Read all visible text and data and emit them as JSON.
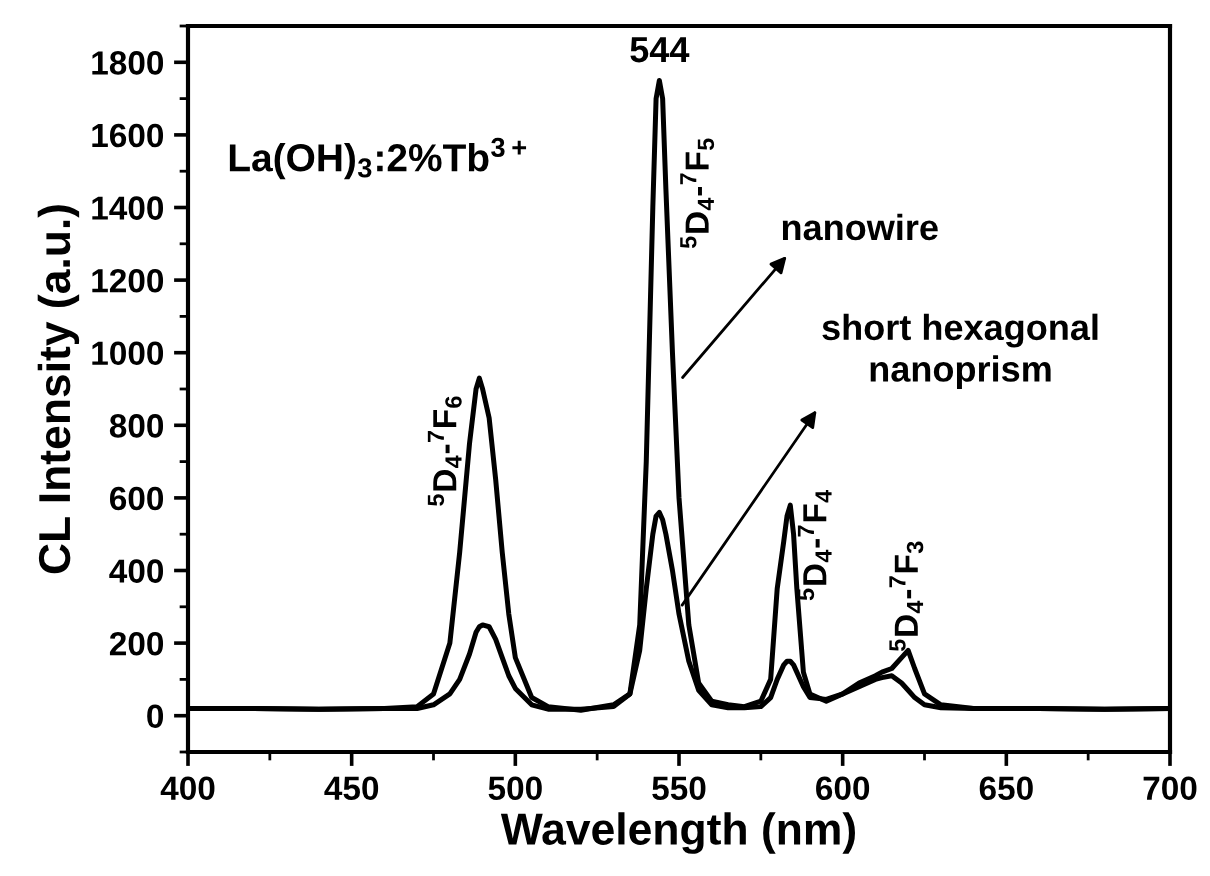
{
  "chart_data": {
    "type": "line",
    "xlabel": "Wavelength (nm)",
    "ylabel": "CL Intensity (a.u.)",
    "x": [
      400,
      420,
      440,
      460,
      470,
      475,
      480,
      483,
      486,
      488,
      489,
      490,
      492,
      494,
      496,
      498,
      500,
      505,
      510,
      520,
      530,
      535,
      538,
      540,
      542,
      543,
      544,
      545,
      546,
      548,
      550,
      553,
      556,
      560,
      565,
      570,
      575,
      578,
      580,
      582,
      583,
      584,
      585,
      586,
      588,
      590,
      595,
      600,
      605,
      610,
      612,
      615,
      618,
      620,
      622,
      625,
      630,
      640,
      660,
      680,
      700
    ],
    "series": [
      {
        "color": "#000000",
        "values": [
          20,
          20,
          18,
          20,
          25,
          60,
          200,
          450,
          750,
          900,
          930,
          900,
          820,
          650,
          450,
          280,
          160,
          50,
          25,
          15,
          30,
          60,
          250,
          700,
          1400,
          1700,
          1750,
          1700,
          1450,
          1000,
          600,
          250,
          90,
          40,
          30,
          25,
          40,
          100,
          350,
          480,
          550,
          580,
          500,
          350,
          120,
          60,
          40,
          60,
          90,
          110,
          120,
          130,
          160,
          180,
          130,
          60,
          30,
          20,
          20,
          18,
          20
        ]
      },
      {
        "color": "#000000",
        "values": [
          20,
          20,
          18,
          20,
          20,
          30,
          60,
          100,
          170,
          230,
          245,
          250,
          245,
          210,
          160,
          110,
          75,
          30,
          18,
          18,
          25,
          60,
          180,
          350,
          500,
          550,
          560,
          540,
          500,
          400,
          280,
          150,
          70,
          30,
          22,
          22,
          25,
          50,
          100,
          140,
          150,
          150,
          140,
          120,
          80,
          50,
          45,
          60,
          80,
          100,
          105,
          110,
          90,
          70,
          50,
          30,
          22,
          20,
          20,
          18,
          20
        ]
      }
    ],
    "xlim": [
      400,
      700
    ],
    "xticks": [
      400,
      450,
      500,
      550,
      600,
      650,
      700
    ],
    "ylim": [
      -100,
      1900
    ],
    "yticks": [
      0,
      200,
      400,
      600,
      800,
      1000,
      1200,
      1400,
      1600,
      1800
    ],
    "line_style": "solid",
    "grid": false,
    "legend": false,
    "annotations": [
      "544",
      "La(OH)$_{3}$:2%Tb$^{3+}$",
      {
        "text": "nanowire",
        "x": 550,
        "y": 920
      },
      {
        "text": "short hexagonal\nnanoprism",
        "x": 550,
        "y": 292
      },
      "$^{5}$D$_{4}$-$^{7}$F$_{6}$",
      "$^{5}$D$_{4}$-$^{7}$F$_{5}$",
      "$^{5}$D$_{4}$-$^{7}$F$_{4}$",
      "$^{5}$D$_{4}$-$^{7}$F$_{3}$"
    ]
  }
}
